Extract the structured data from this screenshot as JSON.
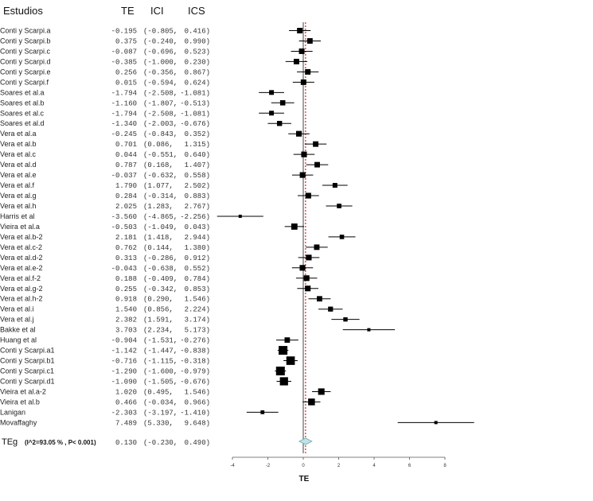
{
  "chart_data": {
    "type": "forest",
    "headers": {
      "study": "Estudios",
      "te": "TE",
      "lci": "ICI",
      "ucs": "ICS"
    },
    "xlabel": "TE",
    "xlim": [
      -4,
      8
    ],
    "xticks": [
      -4,
      -2,
      0,
      2,
      4,
      6,
      8
    ],
    "reference_line": 0,
    "summary_line": 0.13,
    "studies": [
      {
        "name": "Conti y Scarpi.a",
        "te": "-0.195",
        "lci": "-0.805,",
        "ucs": "0.416)",
        "est": -0.195,
        "lo": -0.805,
        "hi": 0.416
      },
      {
        "name": "Conti y Scarpi.b",
        "te": "0.375",
        "lci": "-0.240,",
        "ucs": "0.990)",
        "est": 0.375,
        "lo": -0.24,
        "hi": 0.99
      },
      {
        "name": "Conti y Scarpi.c",
        "te": "-0.087",
        "lci": "-0.696,",
        "ucs": "0.523)",
        "est": -0.087,
        "lo": -0.696,
        "hi": 0.523
      },
      {
        "name": "Conti y Scarpi.d",
        "te": "-0.385",
        "lci": "-1.000,",
        "ucs": "0.230)",
        "est": -0.385,
        "lo": -1.0,
        "hi": 0.23
      },
      {
        "name": "Conti y Scarpi.e",
        "te": "0.256",
        "lci": "-0.356,",
        "ucs": "0.867)",
        "est": 0.256,
        "lo": -0.356,
        "hi": 0.867
      },
      {
        "name": "Conti y Scarpi.f",
        "te": "0.015",
        "lci": "-0.594,",
        "ucs": "0.624)",
        "est": 0.015,
        "lo": -0.594,
        "hi": 0.624
      },
      {
        "name": "Soares et al.a",
        "te": "-1.794",
        "lci": "-2.508,",
        "ucs": "-1.081)",
        "est": -1.794,
        "lo": -2.508,
        "hi": -1.081
      },
      {
        "name": "Soares et al.b",
        "te": "-1.160",
        "lci": "-1.807,",
        "ucs": "-0.513)",
        "est": -1.16,
        "lo": -1.807,
        "hi": -0.513
      },
      {
        "name": "Soares et al.c",
        "te": "-1.794",
        "lci": "-2.508,",
        "ucs": "-1.081)",
        "est": -1.794,
        "lo": -2.508,
        "hi": -1.081
      },
      {
        "name": "Soares et al.d",
        "te": "-1.340",
        "lci": "-2.003,",
        "ucs": "-0.676)",
        "est": -1.34,
        "lo": -2.003,
        "hi": -0.676
      },
      {
        "name": "Vera et al.a",
        "te": "-0.245",
        "lci": "-0.843,",
        "ucs": "0.352)",
        "est": -0.245,
        "lo": -0.843,
        "hi": 0.352
      },
      {
        "name": "Vera et al.b",
        "te": "0.701",
        "lci": "0.086,",
        "ucs": "1.315)",
        "est": 0.701,
        "lo": 0.086,
        "hi": 1.315
      },
      {
        "name": "Vera et al.c",
        "te": "0.044",
        "lci": "-0.551,",
        "ucs": "0.640)",
        "est": 0.044,
        "lo": -0.551,
        "hi": 0.64
      },
      {
        "name": "Vera et al.d",
        "te": "0.787",
        "lci": "0.168,",
        "ucs": "1.407)",
        "est": 0.787,
        "lo": 0.168,
        "hi": 1.407
      },
      {
        "name": "Vera et al.e",
        "te": "-0.037",
        "lci": "-0.632,",
        "ucs": "0.558)",
        "est": -0.037,
        "lo": -0.632,
        "hi": 0.558
      },
      {
        "name": "Vera et al.f",
        "te": "1.790",
        "lci": "1.077,",
        "ucs": "2.502)",
        "est": 1.79,
        "lo": 1.077,
        "hi": 2.502
      },
      {
        "name": "Vera et al.g",
        "te": "0.284",
        "lci": "-0.314,",
        "ucs": "0.883)",
        "est": 0.284,
        "lo": -0.314,
        "hi": 0.883
      },
      {
        "name": "Vera et al.h",
        "te": "2.025",
        "lci": "1.283,",
        "ucs": "2.767)",
        "est": 2.025,
        "lo": 1.283,
        "hi": 2.767
      },
      {
        "name": "Harris et al",
        "te": "-3.560",
        "lci": "-4.865,",
        "ucs": "-2.256)",
        "est": -3.56,
        "lo": -4.865,
        "hi": -2.256
      },
      {
        "name": "Vieira et al.a",
        "te": "-0.503",
        "lci": "-1.049,",
        "ucs": "0.043)",
        "est": -0.503,
        "lo": -1.049,
        "hi": 0.043
      },
      {
        "name": "Vera et al.b-2",
        "te": "2.181",
        "lci": "1.418,",
        "ucs": "2.944)",
        "est": 2.181,
        "lo": 1.418,
        "hi": 2.944
      },
      {
        "name": "Vera et al.c-2",
        "te": "0.762",
        "lci": "0.144,",
        "ucs": "1.380)",
        "est": 0.762,
        "lo": 0.144,
        "hi": 1.38
      },
      {
        "name": "Vera et al.d-2",
        "te": "0.313",
        "lci": "-0.286,",
        "ucs": "0.912)",
        "est": 0.313,
        "lo": -0.286,
        "hi": 0.912
      },
      {
        "name": "Vera et al.e-2",
        "te": "-0.043",
        "lci": "-0.638,",
        "ucs": "0.552)",
        "est": -0.043,
        "lo": -0.638,
        "hi": 0.552
      },
      {
        "name": "Vera et al.f-2",
        "te": "0.188",
        "lci": "-0.409,",
        "ucs": "0.784)",
        "est": 0.188,
        "lo": -0.409,
        "hi": 0.784
      },
      {
        "name": "Vera et al.g-2",
        "te": "0.255",
        "lci": "-0.342,",
        "ucs": "0.853)",
        "est": 0.255,
        "lo": -0.342,
        "hi": 0.853
      },
      {
        "name": "Vera et al.h-2",
        "te": "0.918",
        "lci": "0.290,",
        "ucs": "1.546)",
        "est": 0.918,
        "lo": 0.29,
        "hi": 1.546
      },
      {
        "name": "Vera et al.i",
        "te": "1.540",
        "lci": "0.856,",
        "ucs": "2.224)",
        "est": 1.54,
        "lo": 0.856,
        "hi": 2.224
      },
      {
        "name": "Vera et al.j",
        "te": "2.382",
        "lci": "1.591,",
        "ucs": "3.174)",
        "est": 2.382,
        "lo": 1.591,
        "hi": 3.174
      },
      {
        "name": "Bakke et al",
        "te": "3.703",
        "lci": "2.234,",
        "ucs": "5.173)",
        "est": 3.703,
        "lo": 2.234,
        "hi": 5.173
      },
      {
        "name": "Huang et al",
        "te": "-0.904",
        "lci": "-1.531,",
        "ucs": "-0.276)",
        "est": -0.904,
        "lo": -1.531,
        "hi": -0.276
      },
      {
        "name": "Conti y Scarpi.a1",
        "te": "-1.142",
        "lci": "-1.447,",
        "ucs": "-0.838)",
        "est": -1.142,
        "lo": -1.447,
        "hi": -0.838
      },
      {
        "name": "Conti y Scarpi.b1",
        "te": "-0.716",
        "lci": "-1.115,",
        "ucs": "-0.318)",
        "est": -0.716,
        "lo": -1.115,
        "hi": -0.318
      },
      {
        "name": "Conti y Scarpi.c1",
        "te": "-1.290",
        "lci": "-1.600,",
        "ucs": "-0.979)",
        "est": -1.29,
        "lo": -1.6,
        "hi": -0.979
      },
      {
        "name": "Conti y Scarpi.d1",
        "te": "-1.090",
        "lci": "-1.505,",
        "ucs": "-0.676)",
        "est": -1.09,
        "lo": -1.505,
        "hi": -0.676
      },
      {
        "name": "Vieira et al.a-2",
        "te": "1.020",
        "lci": "0.495,",
        "ucs": "1.546)",
        "est": 1.02,
        "lo": 0.495,
        "hi": 1.546
      },
      {
        "name": "Vieira et al.b",
        "te": "0.466",
        "lci": "-0.034,",
        "ucs": "0.966)",
        "est": 0.466,
        "lo": -0.034,
        "hi": 0.966
      },
      {
        "name": "Lanigan",
        "te": "-2.303",
        "lci": "-3.197,",
        "ucs": "-1.410)",
        "est": -2.303,
        "lo": -3.197,
        "hi": -1.41
      },
      {
        "name": "Movaffaghy",
        "te": "7.489",
        "lci": "5.330,",
        "ucs": "9.648)",
        "est": 7.489,
        "lo": 5.33,
        "hi": 9.648
      }
    ],
    "summary": {
      "name": "TEg",
      "stats": "(I^2=93.05 % , P< 0.001)",
      "te": "0.130",
      "lci": "-0.230,",
      "ucs": "0.490)",
      "est": 0.13,
      "lo": -0.23,
      "hi": 0.49
    },
    "colors": {
      "marker": "#000000",
      "ref_line": "#444444",
      "summary_line": "#cc0000",
      "diamond": "#bfe3e6"
    }
  }
}
